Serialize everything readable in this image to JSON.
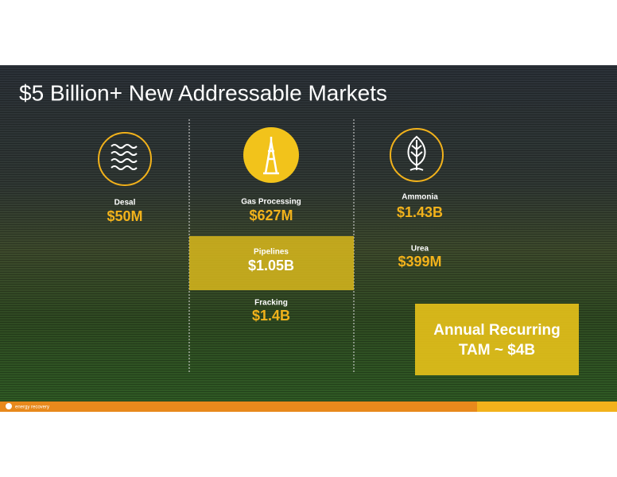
{
  "title": "$5 Billion+ New Addressable Markets",
  "columns": [
    {
      "markets": [
        {
          "name": "Desal",
          "value": "$50M"
        }
      ]
    },
    {
      "markets": [
        {
          "name": "Gas Processing",
          "value": "$627M"
        },
        {
          "name": "Pipelines",
          "value": "$1.05B"
        },
        {
          "name": "Fracking",
          "value": "$1.4B"
        }
      ]
    },
    {
      "markets": [
        {
          "name": "Ammonia",
          "value": "$1.43B"
        },
        {
          "name": "Urea",
          "value": "$399M"
        }
      ]
    }
  ],
  "highlight": {
    "lines": [
      "Annual Recurring",
      "TAM ~ $4B"
    ]
  },
  "footer": {
    "logo": "energy recovery"
  }
}
